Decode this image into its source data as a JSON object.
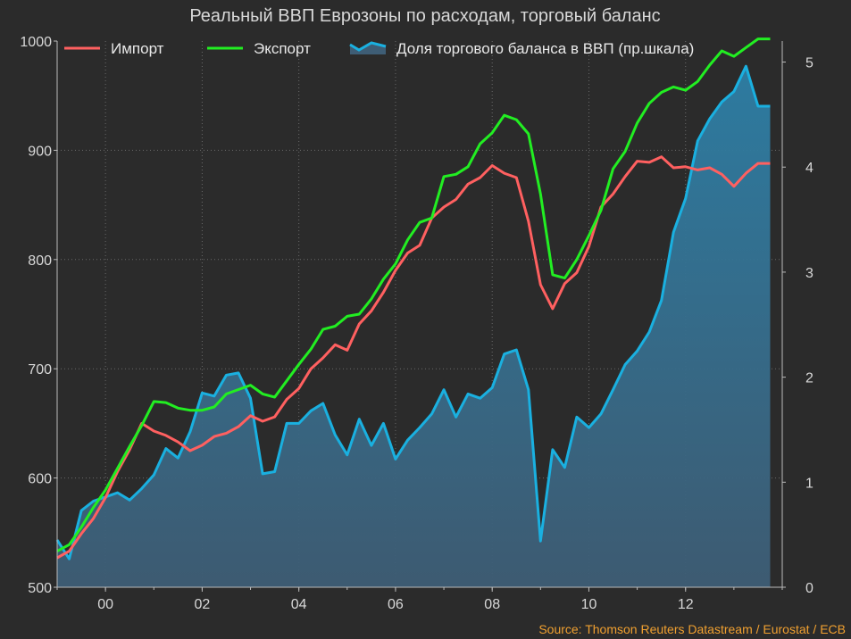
{
  "chart_data": {
    "type": "line",
    "title": "Реальный ВВП Еврозоны по расходам, торговый баланс",
    "source": "Source: Thomson Reuters Datastream / Eurostat / ECB",
    "legend_position": "top",
    "grid": true,
    "x_ticks": [
      {
        "x": 2000,
        "label": "00"
      },
      {
        "x": 2002,
        "label": "02"
      },
      {
        "x": 2004,
        "label": "04"
      },
      {
        "x": 2006,
        "label": "06"
      },
      {
        "x": 2008,
        "label": "08"
      },
      {
        "x": 2010,
        "label": "10"
      },
      {
        "x": 2012,
        "label": "12"
      }
    ],
    "xlim": [
      1999.0,
      2014.0
    ],
    "y_left": {
      "lim": [
        500,
        1000
      ],
      "ticks": [
        "500",
        "600",
        "700",
        "800",
        "900",
        "1000"
      ]
    },
    "y_right": {
      "lim": [
        0,
        5.2
      ],
      "ticks": [
        "0",
        "1",
        "2",
        "3",
        "4",
        "5"
      ]
    },
    "x": [
      1999.0,
      1999.25,
      1999.5,
      1999.75,
      2000.0,
      2000.25,
      2000.5,
      2000.75,
      2001.0,
      2001.25,
      2001.5,
      2001.75,
      2002.0,
      2002.25,
      2002.5,
      2002.75,
      2003.0,
      2003.25,
      2003.5,
      2003.75,
      2004.0,
      2004.25,
      2004.5,
      2004.75,
      2005.0,
      2005.25,
      2005.5,
      2005.75,
      2006.0,
      2006.25,
      2006.5,
      2006.75,
      2007.0,
      2007.25,
      2007.5,
      2007.75,
      2008.0,
      2008.25,
      2008.5,
      2008.75,
      2009.0,
      2009.25,
      2009.5,
      2009.75,
      2010.0,
      2010.25,
      2010.5,
      2010.75,
      2011.0,
      2011.25,
      2011.5,
      2011.75,
      2012.0,
      2012.25,
      2012.5,
      2012.75,
      2013.0,
      2013.25,
      2013.5,
      2013.75
    ],
    "series": [
      {
        "name": "Импорт",
        "color": "#ff6060",
        "axis": "left",
        "style": "line",
        "values": [
          527,
          533,
          549,
          563,
          582,
          606,
          626,
          650,
          643,
          639,
          633,
          625,
          630,
          638,
          641,
          647,
          657,
          652,
          656,
          672,
          682,
          700,
          710,
          722,
          717,
          741,
          753,
          770,
          790,
          806,
          813,
          838,
          848,
          855,
          869,
          875,
          886,
          879,
          875,
          835,
          777,
          755,
          778,
          788,
          812,
          848,
          860,
          876,
          890,
          889,
          894,
          884,
          885,
          882,
          884,
          878,
          867,
          879,
          888,
          888
        ]
      },
      {
        "name": "Экспорт",
        "color": "#22ee22",
        "axis": "left",
        "style": "line",
        "values": [
          533,
          539,
          555,
          573,
          589,
          609,
          629,
          648,
          670,
          669,
          664,
          662,
          662,
          665,
          677,
          681,
          685,
          677,
          674,
          689,
          704,
          718,
          736,
          739,
          748,
          750,
          764,
          782,
          796,
          818,
          834,
          838,
          876,
          878,
          885,
          906,
          916,
          932,
          928,
          915,
          860,
          786,
          783,
          800,
          822,
          845,
          883,
          899,
          925,
          943,
          953,
          958,
          955,
          963,
          978,
          991,
          986,
          994,
          1002,
          1002
        ]
      },
      {
        "name": "Доля торгового баланса в ВВП (пр.шкала)",
        "color": "#1ab0e0",
        "fill": "#3e5d75",
        "axis": "right",
        "style": "area",
        "values": [
          0.45,
          0.27,
          0.73,
          0.82,
          0.86,
          0.9,
          0.83,
          0.94,
          1.07,
          1.32,
          1.23,
          1.48,
          1.85,
          1.82,
          2.02,
          2.04,
          1.8,
          1.08,
          1.1,
          1.56,
          1.56,
          1.68,
          1.75,
          1.45,
          1.26,
          1.6,
          1.35,
          1.56,
          1.22,
          1.4,
          1.52,
          1.65,
          1.88,
          1.62,
          1.84,
          1.8,
          1.9,
          2.22,
          2.26,
          1.88,
          0.44,
          1.31,
          1.14,
          1.62,
          1.52,
          1.65,
          1.88,
          2.12,
          2.25,
          2.43,
          2.73,
          3.38,
          3.7,
          4.25,
          4.46,
          4.62,
          4.72,
          4.96,
          4.58,
          4.58
        ]
      }
    ]
  }
}
